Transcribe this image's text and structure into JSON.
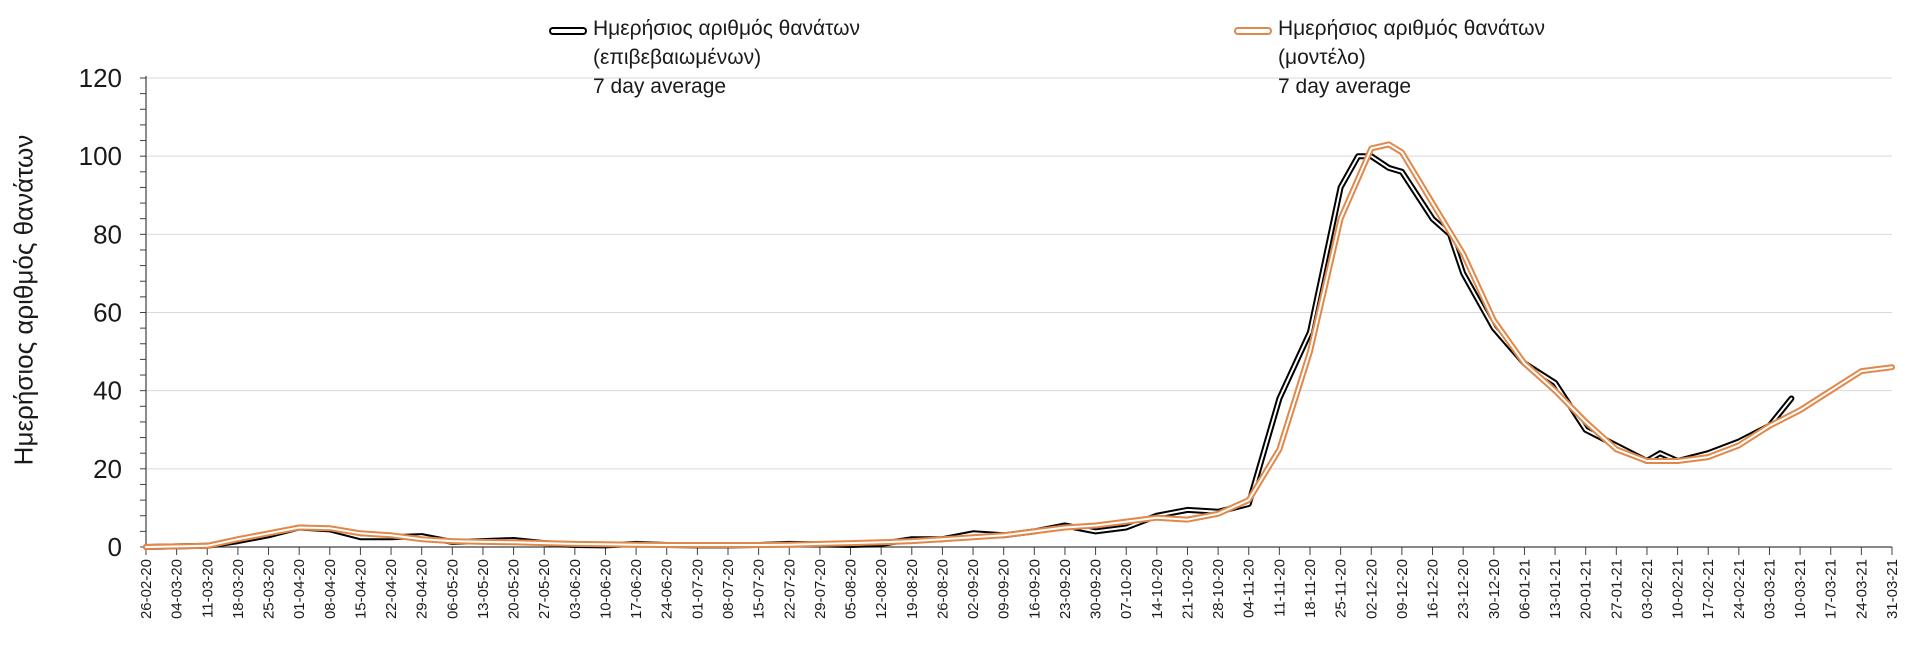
{
  "chart_data": {
    "type": "line",
    "xlabel": "",
    "ylabel": "Ημερήσιος αριθμός θανάτων",
    "ylim": [
      0,
      120
    ],
    "yticks": [
      0,
      20,
      40,
      60,
      80,
      100,
      120
    ],
    "grid": "horizontal",
    "legend_position": "top",
    "x_start": "26-02-20",
    "x_end": "31-03-21",
    "x_tick_labels": [
      "26-02-20",
      "04-03-20",
      "11-03-20",
      "18-03-20",
      "25-03-20",
      "01-04-20",
      "08-04-20",
      "15-04-20",
      "22-04-20",
      "29-04-20",
      "06-05-20",
      "13-05-20",
      "20-05-20",
      "27-05-20",
      "03-06-20",
      "10-06-20",
      "17-06-20",
      "24-06-20",
      "01-07-20",
      "08-07-20",
      "15-07-20",
      "22-07-20",
      "29-07-20",
      "05-08-20",
      "12-08-20",
      "19-08-20",
      "26-08-20",
      "02-09-20",
      "09-09-20",
      "16-09-20",
      "23-09-20",
      "30-09-20",
      "07-10-20",
      "14-10-20",
      "21-10-20",
      "28-10-20",
      "04-11-20",
      "11-11-20",
      "18-11-20",
      "25-11-20",
      "02-12-20",
      "09-12-20",
      "16-12-20",
      "23-12-20",
      "30-12-20",
      "06-01-21",
      "13-01-21",
      "20-01-21",
      "27-01-21",
      "03-02-21",
      "10-02-21",
      "17-02-21",
      "24-02-21",
      "03-03-21",
      "10-03-21",
      "17-03-21",
      "24-03-21",
      "31-03-21"
    ],
    "series": [
      {
        "name": "Ημερήσιος αριθμός θανάτων (επιβεβαιωμένων) 7 day average",
        "legend_lines": [
          "Ημερήσιος αριθμός θανάτων",
          "(επιβεβαιωμένων)",
          "7 day average"
        ],
        "style": "black-double",
        "x": [
          "26-02-20",
          "11-03-20",
          "18-03-20",
          "25-03-20",
          "01-04-20",
          "08-04-20",
          "15-04-20",
          "22-04-20",
          "29-04-20",
          "06-05-20",
          "13-05-20",
          "20-05-20",
          "27-05-20",
          "03-06-20",
          "10-06-20",
          "17-06-20",
          "24-06-20",
          "01-07-20",
          "08-07-20",
          "15-07-20",
          "22-07-20",
          "29-07-20",
          "05-08-20",
          "12-08-20",
          "19-08-20",
          "26-08-20",
          "02-09-20",
          "09-09-20",
          "16-09-20",
          "23-09-20",
          "30-09-20",
          "07-10-20",
          "14-10-20",
          "21-10-20",
          "28-10-20",
          "04-11-20",
          "11-11-20",
          "18-11-20",
          "25-11-20",
          "29-11-20",
          "02-12-20",
          "06-12-20",
          "09-12-20",
          "16-12-20",
          "20-12-20",
          "23-12-20",
          "30-12-20",
          "06-01-21",
          "13-01-21",
          "20-01-21",
          "27-01-21",
          "03-02-21",
          "06-02-21",
          "10-02-21",
          "17-02-21",
          "24-02-21",
          "03-03-21",
          "08-03-21"
        ],
        "y": [
          0,
          0.3,
          1.5,
          3,
          5,
          4.5,
          2.5,
          2.5,
          2.8,
          1.3,
          1.5,
          1.8,
          1,
          0.5,
          0.4,
          0.8,
          0.5,
          0.4,
          0.4,
          0.5,
          0.8,
          0.7,
          0.5,
          0.8,
          2,
          2,
          3.5,
          3,
          4,
          5.5,
          4,
          5,
          8,
          9.5,
          9,
          11,
          38,
          55,
          92,
          100,
          100,
          97,
          96,
          84,
          80,
          70,
          56,
          47,
          42,
          30,
          26,
          22,
          24,
          22,
          24,
          27,
          31,
          38
        ]
      },
      {
        "name": "Ημερήσιος αριθμός θανάτων (μοντέλο) 7 day average",
        "legend_lines": [
          "Ημερήσιος αριθμός θανάτων",
          "(μοντέλο)",
          "7 day average"
        ],
        "style": "orange-double",
        "x": [
          "26-02-20",
          "11-03-20",
          "18-03-20",
          "25-03-20",
          "01-04-20",
          "08-04-20",
          "15-04-20",
          "22-04-20",
          "29-04-20",
          "06-05-20",
          "13-05-20",
          "20-05-20",
          "27-05-20",
          "03-06-20",
          "10-06-20",
          "17-06-20",
          "24-06-20",
          "01-07-20",
          "08-07-20",
          "15-07-20",
          "22-07-20",
          "29-07-20",
          "05-08-20",
          "12-08-20",
          "19-08-20",
          "26-08-20",
          "02-09-20",
          "09-09-20",
          "16-09-20",
          "23-09-20",
          "30-09-20",
          "07-10-20",
          "14-10-20",
          "21-10-20",
          "28-10-20",
          "04-11-20",
          "11-11-20",
          "18-11-20",
          "25-11-20",
          "02-12-20",
          "06-12-20",
          "09-12-20",
          "16-12-20",
          "23-12-20",
          "30-12-20",
          "06-01-21",
          "13-01-21",
          "20-01-21",
          "27-01-21",
          "03-02-21",
          "10-02-21",
          "17-02-21",
          "24-02-21",
          "03-03-21",
          "10-03-21",
          "17-03-21",
          "24-03-21",
          "31-03-21"
        ],
        "y": [
          0,
          0.3,
          2,
          3.5,
          5,
          4.8,
          3.5,
          3,
          2,
          1.5,
          1.3,
          1.2,
          1,
          0.8,
          0.7,
          0.6,
          0.5,
          0.5,
          0.5,
          0.5,
          0.6,
          0.8,
          1,
          1.2,
          1.5,
          2,
          2.5,
          3,
          4,
          5,
          5.5,
          6.5,
          7.5,
          7,
          8.5,
          12,
          25,
          50,
          84,
          102,
          103,
          101,
          88,
          75,
          58,
          47,
          40,
          32,
          25,
          22,
          22,
          23,
          26,
          31,
          35,
          40,
          45,
          46
        ]
      }
    ]
  }
}
